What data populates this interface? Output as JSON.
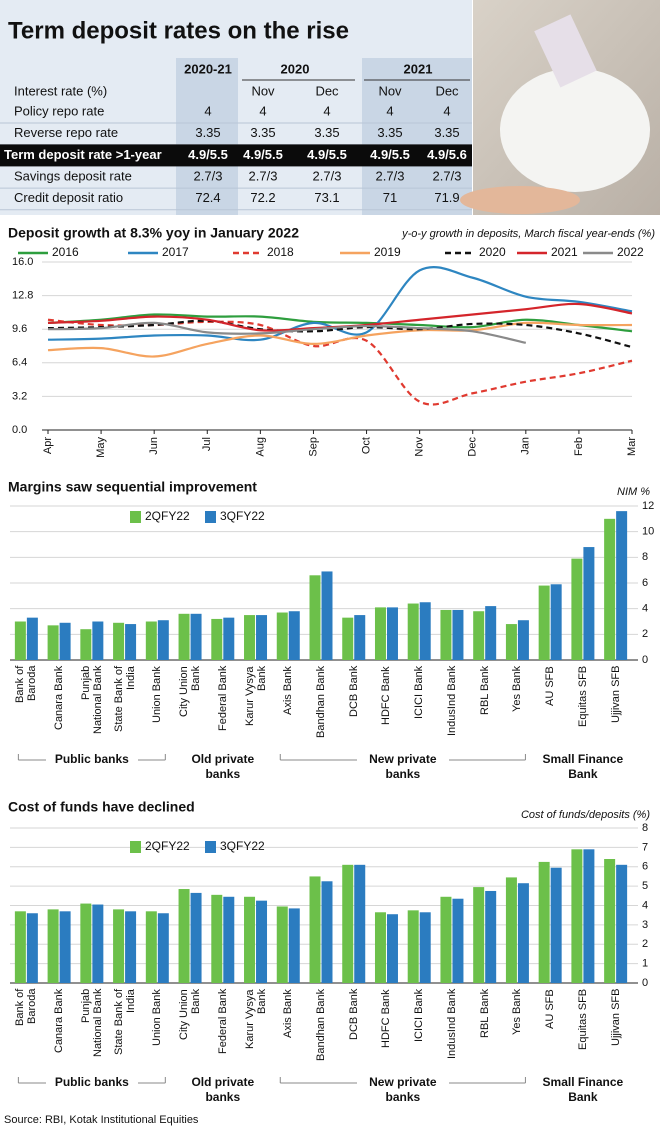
{
  "title": "Term deposit rates on the rise",
  "table": {
    "header": [
      "Interest rate (%)",
      "2020-21",
      "2020",
      "2021"
    ],
    "subheader": [
      "Nov",
      "Dec",
      "Nov",
      "Dec"
    ],
    "rows": [
      [
        "Policy repo rate",
        4,
        4,
        4,
        4,
        4
      ],
      [
        "Reverse repo rate",
        3.35,
        3.35,
        3.35,
        3.35,
        3.35
      ],
      [
        "Term deposit rate >1-year",
        "4.9/5.5",
        "4.9/5.5",
        "4.9/5.5",
        "4.9/5.5",
        "4.9/5.6"
      ],
      [
        "Savings deposit rate",
        "2.7/3",
        "2.7/3",
        "2.7/3",
        "2.7/3",
        "2.7/3"
      ],
      [
        "Credit deposit ratio",
        72.4,
        72.2,
        73.1,
        71,
        71.9
      ]
    ]
  },
  "chart_data": [
    {
      "type": "line",
      "title": "Deposit growth at  8.3% yoy in January 2022",
      "subtitle": "y-o-y growth in deposits, March fiscal year-ends (%)",
      "categories": [
        "Apr",
        "May",
        "Jun",
        "Jul",
        "Aug",
        "Sep",
        "Oct",
        "Nov",
        "Dec",
        "Jan",
        "Feb",
        "Mar"
      ],
      "ylim": [
        0,
        16
      ],
      "yticks": [
        {
          "value": 0,
          "label": "0.0"
        },
        3.2,
        6.4,
        9.6,
        12.8,
        {
          "value": 16,
          "label": "16.0"
        }
      ],
      "grid": true,
      "series": [
        {
          "name": "2016",
          "color": "#2e9e3e",
          "dashed": false,
          "values": [
            10.2,
            10.5,
            11,
            10.8,
            10.8,
            10.3,
            10.2,
            10,
            9.8,
            10.5,
            10,
            9.4
          ]
        },
        {
          "name": "2017",
          "color": "#2e86c1",
          "dashed": false,
          "values": [
            8.6,
            8.7,
            9,
            9,
            8.6,
            10.2,
            9.3,
            15.2,
            14.5,
            12.7,
            12.2,
            11.3
          ]
        },
        {
          "name": "2018",
          "color": "#e03a30",
          "dashed": true,
          "values": [
            10.5,
            10,
            10,
            10.3,
            10,
            8,
            8.5,
            2.7,
            3.5,
            4.6,
            5.4,
            6.6
          ]
        },
        {
          "name": "2019",
          "color": "#f5a35f",
          "dashed": false,
          "values": [
            7.6,
            7.8,
            7,
            8.2,
            9,
            8.2,
            9,
            9.5,
            9.5,
            10.2,
            10,
            10
          ]
        },
        {
          "name": "2020",
          "color": "#111111",
          "dashed": true,
          "values": [
            9.7,
            9.8,
            10,
            10.4,
            9.6,
            9.4,
            9.8,
            9.6,
            10.1,
            10,
            9.2,
            7.9
          ]
        },
        {
          "name": "2021",
          "color": "#d4252b",
          "dashed": false,
          "values": [
            10.2,
            10.4,
            10.8,
            10.5,
            9.5,
            9.7,
            10,
            10.5,
            11,
            11.5,
            12,
            11.1
          ]
        },
        {
          "name": "2022",
          "color": "#8a8a8a",
          "dashed": false,
          "values": [
            9.6,
            9.7,
            10.2,
            9.3,
            9.2,
            9.6,
            9.9,
            9.7,
            9.4,
            8.3,
            null,
            null
          ]
        }
      ]
    },
    {
      "type": "bar",
      "title": "Margins saw sequential improvement",
      "ylabel": "NIM %",
      "ylim": [
        0,
        12
      ],
      "yticks": [
        0,
        2,
        4,
        6,
        8,
        10,
        12
      ],
      "grid": true,
      "groups": [
        {
          "name": "Public banks",
          "categories": [
            "Bank of Baroda",
            "Canara Bank",
            "Punjab National Bank",
            "State Bank of India",
            "Union Bank"
          ]
        },
        {
          "name": "Old private banks",
          "categories": [
            "City Union Bank",
            "Federal Bank",
            "Karur Vysya Bank"
          ]
        },
        {
          "name": "New private banks",
          "categories": [
            "Axis Bank",
            "Bandhan Bank",
            "DCB Bank",
            "HDFC Bank",
            "ICICI Bank",
            "IndusInd Bank",
            "RBL Bank",
            "Yes Bank"
          ]
        },
        {
          "name": "Small Finance Bank",
          "categories": [
            "AU SFB",
            "Equitas SFB",
            "Ujjivan SFB"
          ]
        }
      ],
      "series": [
        {
          "name": "2QFY22",
          "color": "#6cc04a",
          "values": [
            3.0,
            2.7,
            2.4,
            2.9,
            3.0,
            3.6,
            3.2,
            3.5,
            3.7,
            6.6,
            3.3,
            4.1,
            4.4,
            3.9,
            3.8,
            2.8,
            5.8,
            7.9,
            11.0
          ]
        },
        {
          "name": "3QFY22",
          "color": "#2b7cc0",
          "values": [
            3.3,
            2.9,
            3.0,
            2.8,
            3.1,
            3.6,
            3.3,
            3.5,
            3.8,
            6.9,
            3.5,
            4.1,
            4.5,
            3.9,
            4.2,
            3.1,
            5.9,
            8.8,
            11.6
          ]
        }
      ]
    },
    {
      "type": "bar",
      "title": "Cost of funds have declined",
      "ylabel": "Cost of funds/deposits (%)",
      "ylim": [
        0,
        8
      ],
      "yticks": [
        0,
        1,
        2,
        3,
        4,
        5,
        6,
        7,
        8
      ],
      "grid": true,
      "groups": [
        {
          "name": "Public banks",
          "categories": [
            "Bank of Baroda",
            "Canara Bank",
            "Punjab National Bank",
            "State Bank of India",
            "Union Bank"
          ]
        },
        {
          "name": "Old private banks",
          "categories": [
            "City Union Bank",
            "Federal Bank",
            "Karur Vysya Bank"
          ]
        },
        {
          "name": "New private banks",
          "categories": [
            "Axis Bank",
            "Bandhan Bank",
            "DCB Bank",
            "HDFC Bank",
            "ICICI Bank",
            "IndusInd Bank",
            "RBL Bank",
            "Yes Bank"
          ]
        },
        {
          "name": "Small Finance Bank",
          "categories": [
            "AU SFB",
            "Equitas SFB",
            "Ujjivan SFB"
          ]
        }
      ],
      "series": [
        {
          "name": "2QFY22",
          "color": "#6cc04a",
          "values": [
            3.7,
            3.8,
            4.1,
            3.8,
            3.7,
            4.85,
            4.55,
            4.45,
            3.95,
            5.5,
            6.1,
            3.65,
            3.75,
            4.45,
            4.95,
            5.45,
            6.25,
            6.9,
            6.4
          ]
        },
        {
          "name": "3QFY22",
          "color": "#2b7cc0",
          "values": [
            3.6,
            3.7,
            4.05,
            3.7,
            3.6,
            4.65,
            4.45,
            4.25,
            3.85,
            5.25,
            6.1,
            3.55,
            3.65,
            4.35,
            4.75,
            5.15,
            5.95,
            6.9,
            6.1
          ]
        }
      ]
    }
  ],
  "source": "Source: RBI, Kotak Institutional Equities"
}
